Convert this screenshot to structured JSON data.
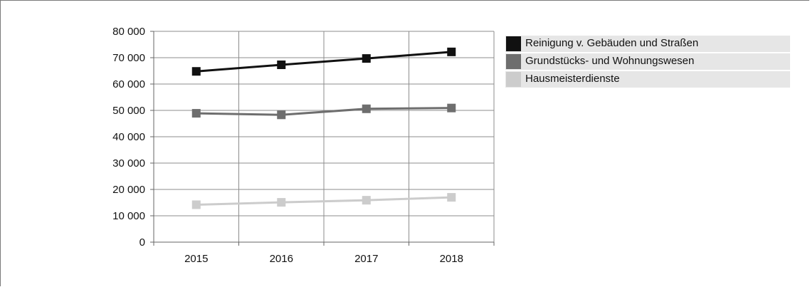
{
  "chart_data": {
    "type": "line",
    "title": "",
    "xlabel": "",
    "ylabel": "",
    "categories": [
      "2015",
      "2016",
      "2017",
      "2018"
    ],
    "ylim": [
      0,
      80000
    ],
    "yticks": [
      0,
      10000,
      20000,
      30000,
      40000,
      50000,
      60000,
      70000,
      80000
    ],
    "ytick_labels": [
      "0",
      "10 000",
      "20 000",
      "30 000",
      "40 000",
      "50 000",
      "60 000",
      "70 000",
      "80 000"
    ],
    "grid": true,
    "legend_position": "right",
    "marker": "square",
    "series": [
      {
        "name": "Reinigung v. Gebäuden und Straßen",
        "values": [
          64800,
          67300,
          69700,
          72200
        ],
        "color": "#111111"
      },
      {
        "name": "Grundstücks- und Wohnungswesen",
        "values": [
          48900,
          48300,
          50600,
          50900
        ],
        "color": "#6e6e6e"
      },
      {
        "name": "Hausmeisterdienste",
        "values": [
          14200,
          15100,
          15900,
          17000
        ],
        "color": "#cccccc"
      }
    ]
  }
}
